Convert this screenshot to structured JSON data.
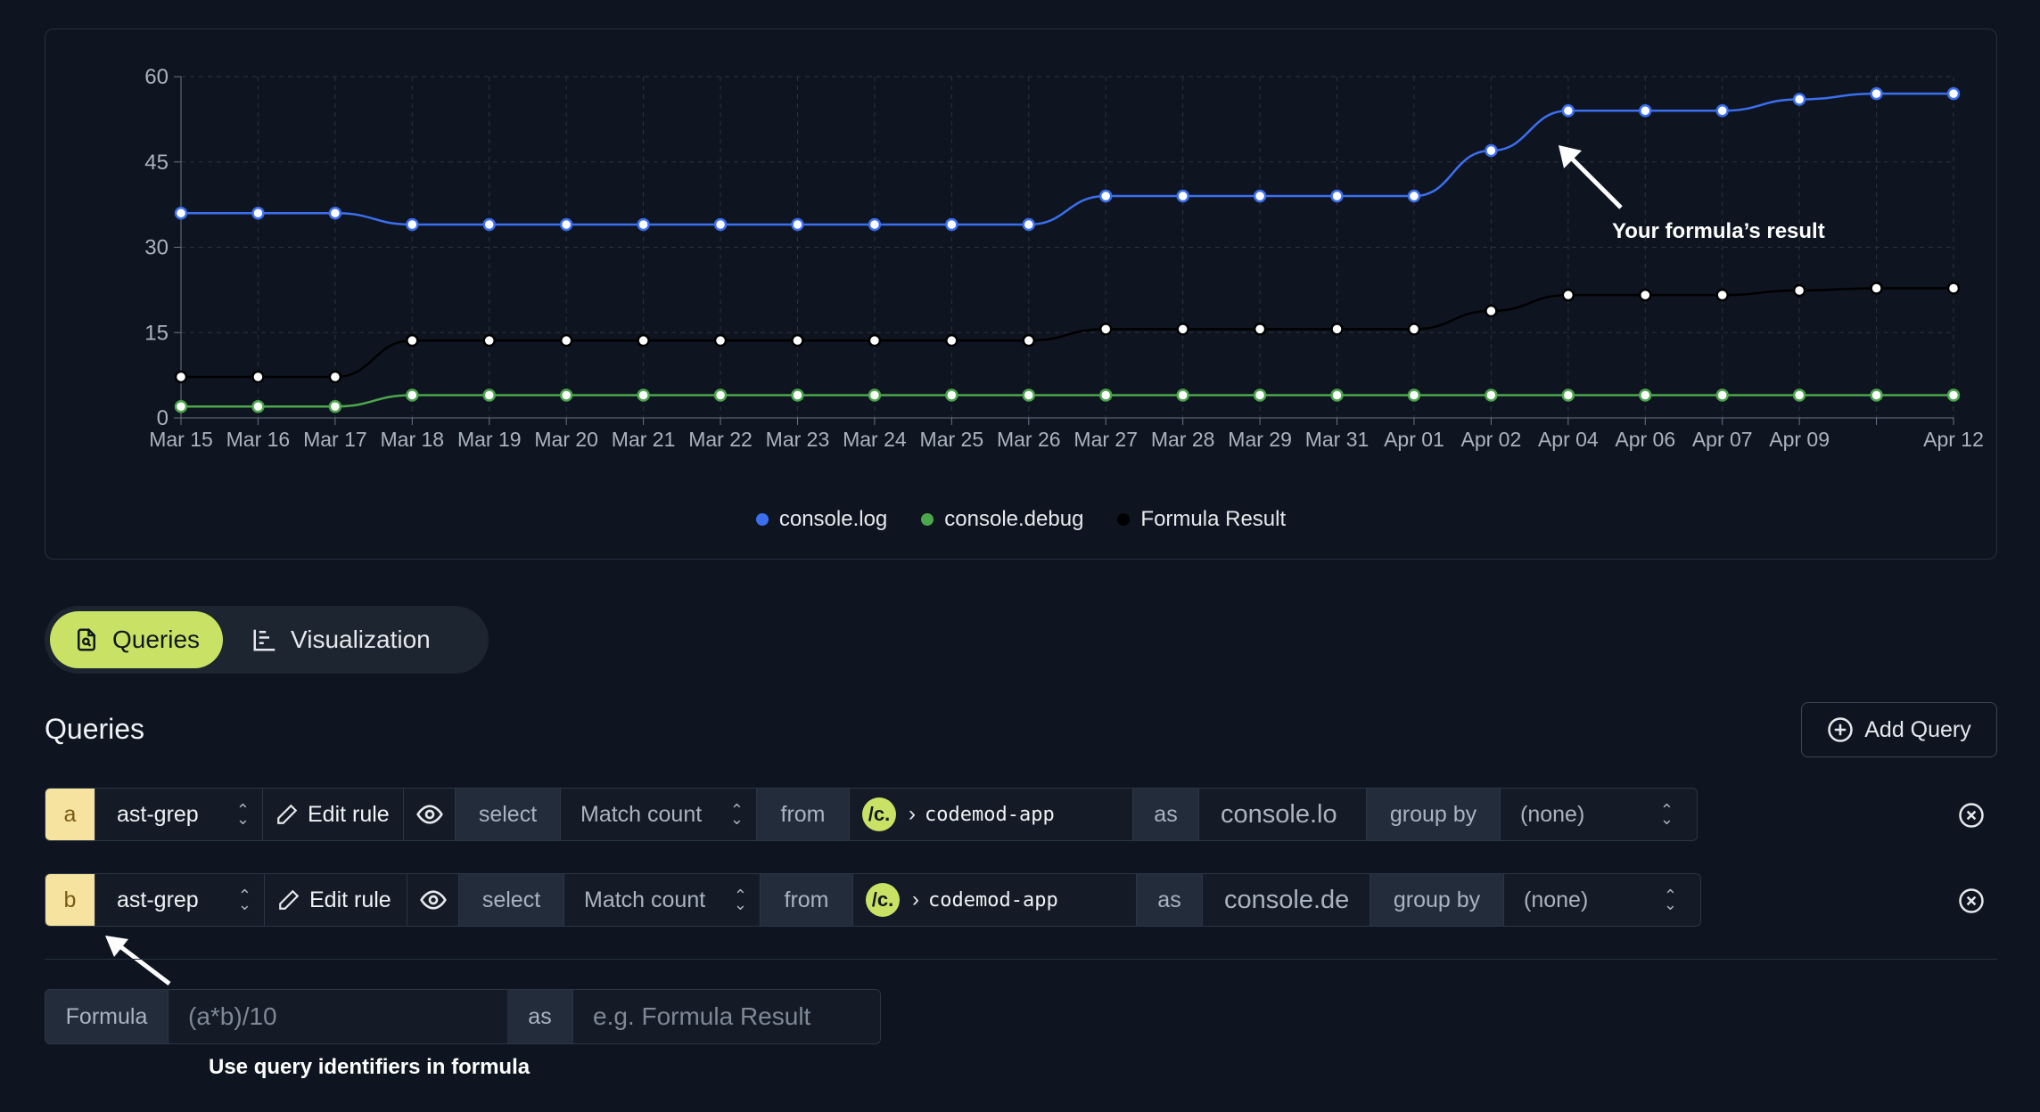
{
  "chart_data": {
    "type": "line",
    "x": [
      "Mar 15",
      "Mar 16",
      "Mar 17",
      "Mar 18",
      "Mar 19",
      "Mar 20",
      "Mar 21",
      "Mar 22",
      "Mar 23",
      "Mar 24",
      "Mar 25",
      "Mar 26",
      "Mar 27",
      "Mar 28",
      "Mar 29",
      "Mar 31",
      "Apr 01",
      "Apr 02",
      "Apr 04",
      "Apr 06",
      "Apr 07",
      "Apr 09",
      "",
      "Apr 12"
    ],
    "ylim": [
      0,
      60
    ],
    "yticks": [
      0,
      15,
      30,
      45,
      60
    ],
    "grid": true,
    "legend_position": "bottom",
    "series": [
      {
        "name": "console.log",
        "color": "#3b6ff0",
        "values": [
          36,
          36,
          36,
          34,
          34,
          34,
          34,
          34,
          34,
          34,
          34,
          34,
          39,
          39,
          39,
          39,
          39,
          47,
          54,
          54,
          54,
          56,
          57,
          57
        ]
      },
      {
        "name": "console.debug",
        "color": "#4ca64c",
        "values": [
          2,
          2,
          2,
          4,
          4,
          4,
          4,
          4,
          4,
          4,
          4,
          4,
          4,
          4,
          4,
          4,
          4,
          4,
          4,
          4,
          4,
          4,
          4,
          4
        ]
      },
      {
        "name": "Formula Result",
        "color": "#000000",
        "values": [
          7.2,
          7.2,
          7.2,
          13.6,
          13.6,
          13.6,
          13.6,
          13.6,
          13.6,
          13.6,
          13.6,
          13.6,
          15.6,
          15.6,
          15.6,
          15.6,
          15.6,
          18.8,
          21.6,
          21.6,
          21.6,
          22.4,
          22.8,
          22.8
        ]
      }
    ]
  },
  "annotations": {
    "formula_result": "Your formula’s result",
    "query_identifiers": "Use query identifiers in formula"
  },
  "tabs": {
    "queries": "Queries",
    "visualization": "Visualization"
  },
  "queries_section": {
    "title": "Queries",
    "add_button": "Add Query"
  },
  "queries": [
    {
      "id": "a",
      "engine": "ast-grep",
      "edit_label": "Edit rule",
      "select_label": "select",
      "metric": "Match count",
      "from_label": "from",
      "logo_text": "/c.",
      "source": "codemod-app",
      "as_label": "as",
      "alias": "console.lo",
      "group_by_label": "group by",
      "group_by_value": "(none)"
    },
    {
      "id": "b",
      "engine": "ast-grep",
      "edit_label": "Edit rule",
      "select_label": "select",
      "metric": "Match count",
      "from_label": "from",
      "logo_text": "/c.",
      "source": "codemod-app",
      "as_label": "as",
      "alias": "console.dе",
      "group_by_label": "group by",
      "group_by_value": "(none)"
    }
  ],
  "formula": {
    "label": "Formula",
    "placeholder": "(a*b)/10",
    "as_label": "as",
    "alias_placeholder": "e.g. Formula Result"
  }
}
